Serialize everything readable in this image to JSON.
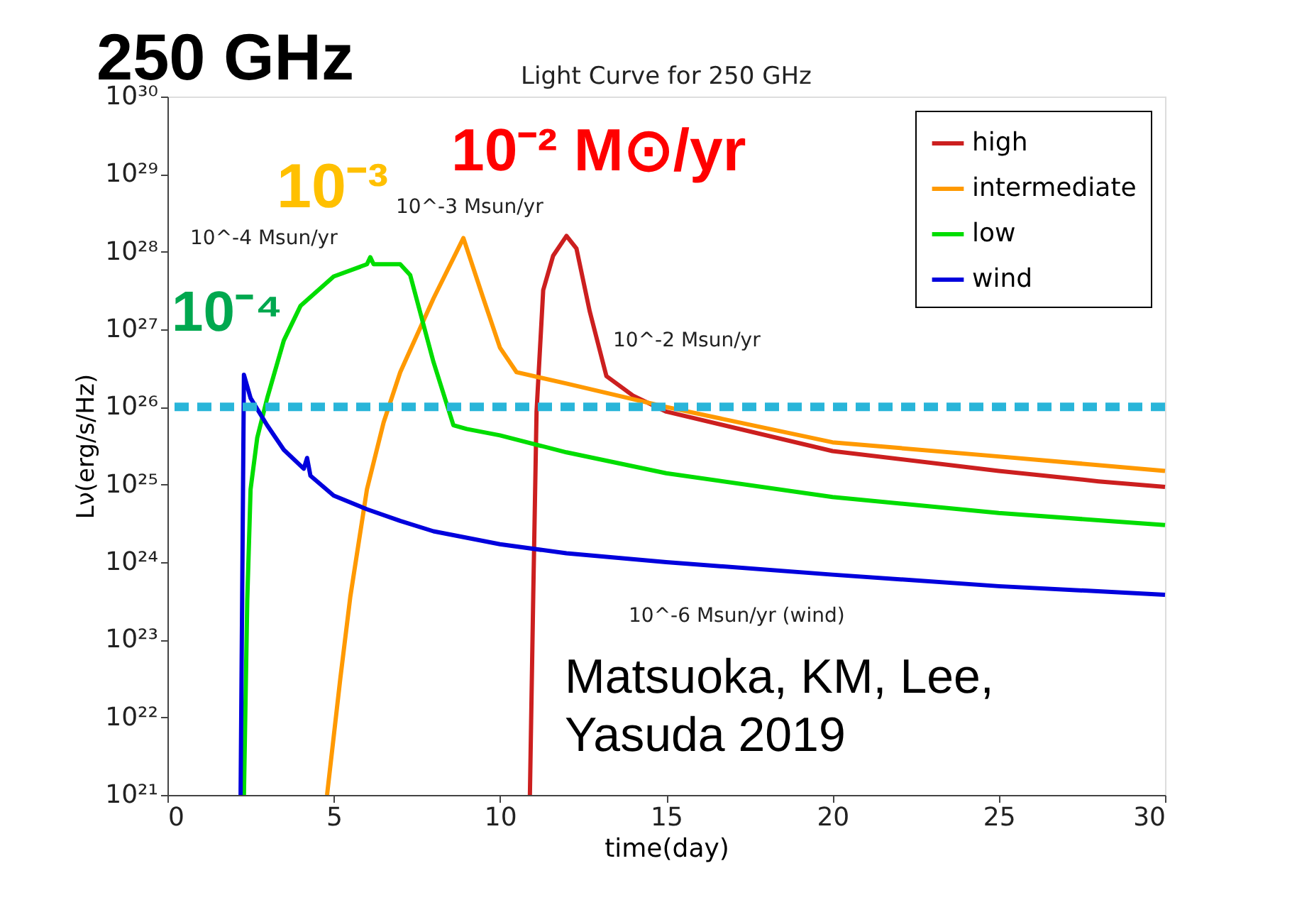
{
  "chart_data": {
    "type": "line",
    "title": "Light Curve for 250 GHz",
    "xlabel": "time(day)",
    "ylabel": "Lν(erg/s/Hz)",
    "xlim": [
      0,
      30
    ],
    "xticks": [
      0,
      5,
      10,
      15,
      20,
      25,
      30
    ],
    "ylim": [
      1e+21,
      1e+30
    ],
    "yticks": [
      {
        "value": 1e+21,
        "label": "10²¹"
      },
      {
        "value": 1e+22,
        "label": "10²²"
      },
      {
        "value": 1e+23,
        "label": "10²³"
      },
      {
        "value": 1e+24,
        "label": "10²⁴"
      },
      {
        "value": 1e+25,
        "label": "10²⁵"
      },
      {
        "value": 1e+26,
        "label": "10²⁶"
      },
      {
        "value": 1e+27,
        "label": "10²⁷"
      },
      {
        "value": 1e+28,
        "label": "10²⁸"
      },
      {
        "value": 1e+29,
        "label": "10²⁹"
      },
      {
        "value": 1e+30,
        "label": "10³⁰"
      }
    ],
    "log": true,
    "grid": false,
    "legend": "top right",
    "marker": "none",
    "line_style": "solid",
    "series": [
      {
        "name": "high",
        "color": "#cc1f1f",
        "x": [
          10.9,
          11,
          11.1,
          11.3,
          11.6,
          12,
          12.3,
          12.7,
          13.2,
          14,
          15,
          20,
          25,
          28,
          30
        ],
        "values": [
          1e+21,
          3.6e+23,
          8.7e+25,
          3.2e+27,
          8.9e+27,
          1.6e+28,
          1.1e+28,
          1.7e+27,
          2.5e+26,
          1.4e+26,
          8.7e+25,
          2.7e+25,
          1.5e+25,
          1.1e+25,
          9.3e+24
        ]
      },
      {
        "name": "intermediate",
        "color": "#ff9900",
        "x": [
          4.8,
          5.2,
          5.5,
          6,
          6.5,
          7,
          8,
          8.9,
          9.5,
          10,
          10.5,
          12,
          15,
          20,
          25,
          30
        ],
        "values": [
          1e+21,
          3.2e+22,
          3.6e+23,
          8.7e+24,
          6.3e+25,
          2.8e+26,
          2.5e+27,
          1.5e+28,
          2.5e+27,
          5.8e+26,
          2.8e+26,
          2e+26,
          1e+26,
          3.5e+25,
          2.3e+25,
          1.5e+25
        ]
      },
      {
        "name": "low",
        "color": "#00dd00",
        "x": [
          2.3,
          2.4,
          2.5,
          2.7,
          3,
          3.5,
          4,
          5,
          6,
          6.1,
          6.2,
          7,
          7.3,
          8,
          8.6,
          9,
          10,
          12,
          15,
          20,
          25,
          30
        ],
        "values": [
          1e+21,
          3.2e+23,
          8.7e+24,
          4e+25,
          1.3e+26,
          7.2e+26,
          2e+27,
          4.8e+27,
          6.9e+27,
          8.5e+27,
          6.9e+27,
          6.9e+27,
          5e+27,
          3.8e+26,
          5.8e+25,
          5.2e+25,
          4.3e+25,
          2.6e+25,
          1.4e+25,
          6.9e+24,
          4.3e+24,
          3e+24
        ]
      },
      {
        "name": "wind",
        "color": "#0000dd",
        "x": [
          2.2,
          2.3,
          2.5,
          3,
          3.5,
          4.1,
          4.2,
          4.3,
          5,
          6,
          7,
          8,
          10,
          12,
          15,
          20,
          25,
          30
        ],
        "values": [
          1e+21,
          2.6e+26,
          1.3e+26,
          5.8e+25,
          2.8e+25,
          1.6e+25,
          2.2e+25,
          1.3e+25,
          7.2e+24,
          4.8e+24,
          3.4e+24,
          2.5e+24,
          1.7e+24,
          1.3e+24,
          1e+24,
          6.9e+23,
          4.9e+23,
          3.8e+23
        ]
      }
    ],
    "ref_lines": [
      {
        "axis": "y",
        "value": 1e+26,
        "color": "#29b5d9",
        "line_style": "dashed"
      }
    ],
    "annotations": [
      "250 GHz",
      "10⁻⁴",
      "10⁻³",
      "10⁻² M⊙/yr",
      "10^-4 Msun/yr",
      "10^-3 Msun/yr",
      "10^-2 Msun/yr",
      "10^-6 Msun/yr (wind)",
      "Matsuoka, KM, Lee, Yasuda 2019"
    ]
  }
}
